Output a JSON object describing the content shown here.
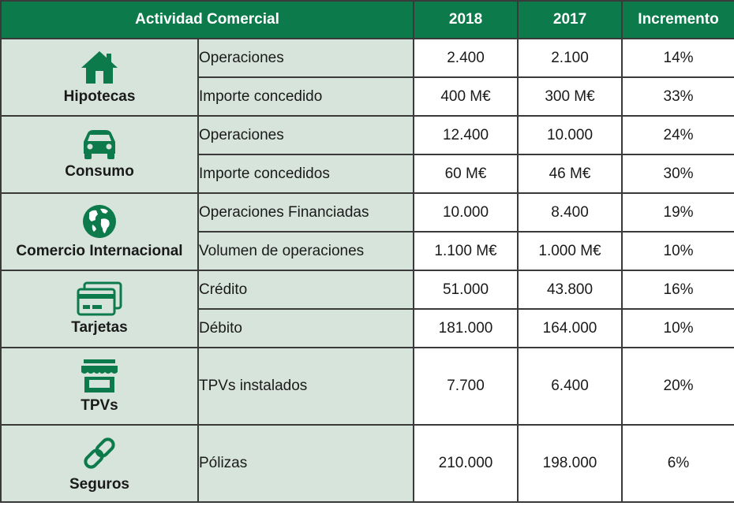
{
  "header": {
    "activity": "Actividad Comercial",
    "year1": "2018",
    "year2": "2017",
    "increment": "Incremento"
  },
  "colors": {
    "header_bg": "#0c7a4b",
    "category_bg": "#d7e4dc",
    "icon": "#0c7a4b"
  },
  "groups": [
    {
      "name": "Hipotecas",
      "icon": "house-icon",
      "rows": [
        {
          "label": "Operaciones",
          "y2018": "2.400",
          "y2017": "2.100",
          "inc": "14%"
        },
        {
          "label": "Importe concedido",
          "y2018": "400 M€",
          "y2017": "300 M€",
          "inc": "33%"
        }
      ]
    },
    {
      "name": "Consumo",
      "icon": "car-icon",
      "rows": [
        {
          "label": "Operaciones",
          "y2018": "12.400",
          "y2017": "10.000",
          "inc": "24%"
        },
        {
          "label": "Importe concedidos",
          "y2018": "60 M€",
          "y2017": "46 M€",
          "inc": "30%"
        }
      ]
    },
    {
      "name": "Comercio Internacional",
      "icon": "globe-icon",
      "rows": [
        {
          "label": "Operaciones Financiadas",
          "y2018": "10.000",
          "y2017": "8.400",
          "inc": "19%"
        },
        {
          "label": "Volumen de operaciones",
          "y2018": "1.100 M€",
          "y2017": "1.000 M€",
          "inc": "10%"
        }
      ]
    },
    {
      "name": "Tarjetas",
      "icon": "cards-icon",
      "rows": [
        {
          "label": "Crédito",
          "y2018": "51.000",
          "y2017": "43.800",
          "inc": "16%"
        },
        {
          "label": "Débito",
          "y2018": "181.000",
          "y2017": "164.000",
          "inc": "10%"
        }
      ]
    },
    {
      "name": "TPVs",
      "icon": "store-icon",
      "rows": [
        {
          "label": "TPVs instalados",
          "y2018": "7.700",
          "y2017": "6.400",
          "inc": "20%"
        }
      ]
    },
    {
      "name": "Seguros",
      "icon": "chain-link-icon",
      "rows": [
        {
          "label": "Pólizas",
          "y2018": "210.000",
          "y2017": "198.000",
          "inc": "6%"
        }
      ]
    }
  ]
}
